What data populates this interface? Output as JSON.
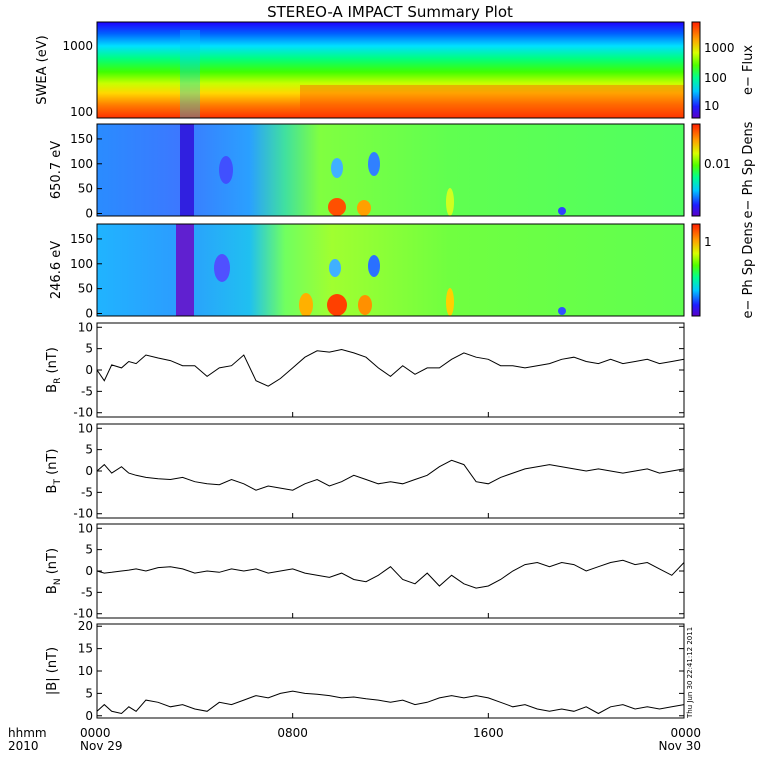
{
  "title": "STEREO-A IMPACT Summary Plot",
  "time_axis": {
    "row_label": "hhmm",
    "year_label": "2010",
    "ticks": [
      {
        "time": "0000",
        "date": "Nov 29",
        "hour": 0
      },
      {
        "time": "0800",
        "date": "",
        "hour": 8
      },
      {
        "time": "1600",
        "date": "",
        "hour": 16
      },
      {
        "time": "0000",
        "date": "Nov 30",
        "hour": 24
      }
    ]
  },
  "timestamp": "Thu Jun 30 22:41:12 2011",
  "chart_data": [
    {
      "type": "heatmap",
      "ylabel": "SWEA (eV)",
      "yscale": "log",
      "ylim": [
        95,
        2000
      ],
      "yticks": [
        "100",
        "1000"
      ],
      "colorbar": {
        "label": "e− Flux",
        "scale": "log",
        "ticks": [
          "10",
          "100",
          "1000"
        ]
      }
    },
    {
      "type": "heatmap",
      "ylabel": "650.7 eV",
      "ylim": [
        -5,
        180
      ],
      "yticks": [
        "0",
        "50",
        "100",
        "150"
      ],
      "colorbar": {
        "label": "e− Ph Sp Dens",
        "scale": "log",
        "ticks": [
          "0.01"
        ]
      }
    },
    {
      "type": "heatmap",
      "ylabel": "246.6 eV",
      "ylim": [
        -5,
        180
      ],
      "yticks": [
        "0",
        "50",
        "100",
        "150"
      ],
      "colorbar": {
        "label": "e− Ph Sp Dens",
        "scale": "log",
        "ticks": [
          "1"
        ]
      }
    },
    {
      "type": "line",
      "ylabel": "B",
      "ylabel_sub": "R",
      "ylabel_unit": "(nT)",
      "ylim": [
        -11,
        11
      ],
      "yticks": [
        "-10",
        "-5",
        "0",
        "5",
        "10"
      ],
      "x": [
        0,
        0.3,
        0.6,
        1.0,
        1.3,
        1.6,
        2.0,
        2.5,
        3.0,
        3.5,
        4.0,
        4.5,
        5.0,
        5.5,
        6.0,
        6.5,
        7.0,
        7.5,
        8.0,
        8.5,
        9.0,
        9.5,
        10.0,
        10.5,
        11.0,
        11.5,
        12.0,
        12.5,
        13.0,
        13.5,
        14.0,
        14.5,
        15.0,
        15.5,
        16.0,
        16.5,
        17.0,
        17.5,
        18.0,
        18.5,
        19.0,
        19.5,
        20.0,
        20.5,
        21.0,
        21.5,
        22.0,
        22.5,
        23.0,
        23.5,
        24.0
      ],
      "y": [
        0,
        -2.5,
        1.2,
        0.5,
        2.0,
        1.5,
        3.5,
        2.8,
        2.2,
        1.0,
        1.0,
        -1.5,
        0.5,
        1.0,
        3.5,
        -2.5,
        -3.8,
        -2.0,
        0.5,
        3.0,
        4.5,
        4.2,
        4.8,
        4.0,
        3.0,
        0.5,
        -1.5,
        1.0,
        -1.0,
        0.5,
        0.5,
        2.5,
        4.0,
        3.0,
        2.5,
        1.0,
        1.0,
        0.5,
        1.0,
        1.5,
        2.5,
        3.0,
        2.0,
        1.5,
        2.5,
        1.5,
        2.0,
        2.5,
        1.5,
        2.0,
        2.5
      ]
    },
    {
      "type": "line",
      "ylabel": "B",
      "ylabel_sub": "T",
      "ylabel_unit": "(nT)",
      "ylim": [
        -11,
        11
      ],
      "yticks": [
        "-10",
        "-5",
        "0",
        "5",
        "10"
      ],
      "x": [
        0,
        0.3,
        0.6,
        1.0,
        1.3,
        1.6,
        2.0,
        2.5,
        3.0,
        3.5,
        4.0,
        4.5,
        5.0,
        5.5,
        6.0,
        6.5,
        7.0,
        7.5,
        8.0,
        8.5,
        9.0,
        9.5,
        10.0,
        10.5,
        11.0,
        11.5,
        12.0,
        12.5,
        13.0,
        13.5,
        14.0,
        14.5,
        15.0,
        15.5,
        16.0,
        16.5,
        17.0,
        17.5,
        18.0,
        18.5,
        19.0,
        19.5,
        20.0,
        20.5,
        21.0,
        21.5,
        22.0,
        22.5,
        23.0,
        23.5,
        24.0
      ],
      "y": [
        0,
        1.5,
        -0.5,
        1.0,
        -0.5,
        -1.0,
        -1.5,
        -1.8,
        -2.0,
        -1.5,
        -2.5,
        -3.0,
        -3.2,
        -2.0,
        -3.0,
        -4.5,
        -3.5,
        -4.0,
        -4.5,
        -3.0,
        -2.0,
        -3.5,
        -2.5,
        -1.0,
        -2.0,
        -3.0,
        -2.5,
        -3.0,
        -2.0,
        -1.0,
        1.0,
        2.5,
        1.5,
        -2.5,
        -3.0,
        -1.5,
        -0.5,
        0.5,
        1.0,
        1.5,
        1.0,
        0.5,
        0.0,
        0.5,
        0.0,
        -0.5,
        0.0,
        0.5,
        -0.5,
        0.0,
        0.5
      ]
    },
    {
      "type": "line",
      "ylabel": "B",
      "ylabel_sub": "N",
      "ylabel_unit": "(nT)",
      "ylim": [
        -11,
        11
      ],
      "yticks": [
        "-10",
        "-5",
        "0",
        "5",
        "10"
      ],
      "x": [
        0,
        0.3,
        0.6,
        1.0,
        1.3,
        1.6,
        2.0,
        2.5,
        3.0,
        3.5,
        4.0,
        4.5,
        5.0,
        5.5,
        6.0,
        6.5,
        7.0,
        7.5,
        8.0,
        8.5,
        9.0,
        9.5,
        10.0,
        10.5,
        11.0,
        11.5,
        12.0,
        12.5,
        13.0,
        13.5,
        14.0,
        14.5,
        15.0,
        15.5,
        16.0,
        16.5,
        17.0,
        17.5,
        18.0,
        18.5,
        19.0,
        19.5,
        20.0,
        20.5,
        21.0,
        21.5,
        22.0,
        22.5,
        23.0,
        23.5,
        24.0
      ],
      "y": [
        0,
        -0.5,
        -0.3,
        0.0,
        0.2,
        0.5,
        0.0,
        0.8,
        1.0,
        0.5,
        -0.5,
        0.0,
        -0.3,
        0.5,
        0.0,
        0.5,
        -0.5,
        0.0,
        0.5,
        -0.5,
        -1.0,
        -1.5,
        -0.5,
        -2.0,
        -2.5,
        -1.0,
        1.0,
        -2.0,
        -3.0,
        -0.5,
        -3.5,
        -1.0,
        -3.0,
        -4.0,
        -3.5,
        -2.0,
        0.0,
        1.5,
        2.0,
        1.0,
        2.0,
        1.5,
        0.0,
        1.0,
        2.0,
        2.5,
        1.5,
        2.0,
        0.5,
        -1.0,
        2.0
      ]
    },
    {
      "type": "line",
      "ylabel": "|B|",
      "ylabel_unit": "(nT)",
      "ylim": [
        -0.5,
        20.5
      ],
      "yticks": [
        "0",
        "5",
        "10",
        "15",
        "20"
      ],
      "x": [
        0,
        0.3,
        0.6,
        1.0,
        1.3,
        1.6,
        2.0,
        2.5,
        3.0,
        3.5,
        4.0,
        4.5,
        5.0,
        5.5,
        6.0,
        6.5,
        7.0,
        7.5,
        8.0,
        8.5,
        9.0,
        9.5,
        10.0,
        10.5,
        11.0,
        11.5,
        12.0,
        12.5,
        13.0,
        13.5,
        14.0,
        14.5,
        15.0,
        15.5,
        16.0,
        16.5,
        17.0,
        17.5,
        18.0,
        18.5,
        19.0,
        19.5,
        20.0,
        20.5,
        21.0,
        21.5,
        22.0,
        22.5,
        23.0,
        23.5,
        24.0
      ],
      "y": [
        1.0,
        2.5,
        1.0,
        0.5,
        2.0,
        1.0,
        3.5,
        3.0,
        2.0,
        2.5,
        1.5,
        1.0,
        3.0,
        2.5,
        3.5,
        4.5,
        4.0,
        5.0,
        5.5,
        5.0,
        4.8,
        4.5,
        4.0,
        4.2,
        3.8,
        3.5,
        3.0,
        3.5,
        2.5,
        3.0,
        4.0,
        4.5,
        4.0,
        4.5,
        4.0,
        3.0,
        2.0,
        2.5,
        1.5,
        1.0,
        1.5,
        1.0,
        2.0,
        0.5,
        2.0,
        2.5,
        1.5,
        2.0,
        1.5,
        2.0,
        2.5
      ]
    }
  ]
}
